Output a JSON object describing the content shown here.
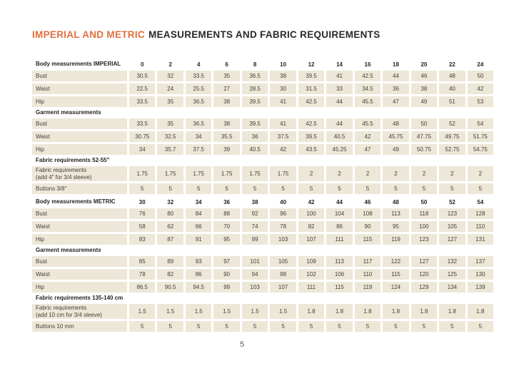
{
  "page": {
    "title_accent": "IMPERIAL AND METRIC",
    "title_rest": "MEASUREMENTS AND FABRIC REQUIREMENTS",
    "page_number": "5",
    "colors": {
      "accent_orange": "#e06e3c",
      "cell_beige": "#ede7d8",
      "heading_text": "#262321",
      "body_text": "#44403a"
    }
  },
  "table": {
    "rows": [
      {
        "type": "size-header",
        "label": "Body measurements IMPERIAL",
        "values": [
          "0",
          "2",
          "4",
          "6",
          "8",
          "10",
          "12",
          "14",
          "16",
          "18",
          "20",
          "22",
          "24"
        ]
      },
      {
        "type": "data",
        "label": "Bust",
        "values": [
          "30.5",
          "32",
          "33.5",
          "35",
          "36.5",
          "38",
          "39.5",
          "41",
          "42.5",
          "44",
          "46",
          "48",
          "50"
        ]
      },
      {
        "type": "data",
        "label": "Waist",
        "values": [
          "22.5",
          "24",
          "25.5",
          "27",
          "28.5",
          "30",
          "31.5",
          "33",
          "34.5",
          "36",
          "38",
          "40",
          "42"
        ]
      },
      {
        "type": "data",
        "label": "Hip",
        "values": [
          "33.5",
          "35",
          "36.5",
          "38",
          "39.5",
          "41",
          "42.5",
          "44",
          "45.5",
          "47",
          "49",
          "51",
          "53"
        ]
      },
      {
        "type": "section",
        "label": "Garment measurements"
      },
      {
        "type": "data",
        "label": "Bust",
        "values": [
          "33.5",
          "35",
          "36.5",
          "38",
          "39.5",
          "41",
          "42.5",
          "44",
          "45.5",
          "48",
          "50",
          "52",
          "54"
        ]
      },
      {
        "type": "data",
        "label": "Waist",
        "values": [
          "30.75",
          "32.5",
          "34",
          "35.5",
          "36",
          "37.5",
          "39.5",
          "40.5",
          "42",
          "45.75",
          "47.75",
          "49.75",
          "51.75"
        ]
      },
      {
        "type": "data",
        "label": "Hip",
        "values": [
          "34",
          "35.7",
          "37.5",
          "39",
          "40.5",
          "42",
          "43.5",
          "45.25",
          "47",
          "49",
          "50.75",
          "52.75",
          "54.75"
        ]
      },
      {
        "type": "section",
        "label": "Fabric requirements 52-55\""
      },
      {
        "type": "data",
        "label": "Fabric requirements",
        "label2": "(add 4\" for 3/4 sleeve)",
        "values": [
          "1.75",
          "1.75",
          "1.75",
          "1.75",
          "1.75",
          "1.75",
          "2",
          "2",
          "2",
          "2",
          "2",
          "2",
          "2"
        ]
      },
      {
        "type": "data",
        "label": "Buttons 3/8\"",
        "values": [
          "5",
          "5",
          "5",
          "5",
          "5",
          "5",
          "5",
          "5",
          "5",
          "5",
          "5",
          "5",
          "5"
        ]
      },
      {
        "type": "size-header",
        "label": "Body measurements METRIC",
        "values": [
          "30",
          "32",
          "34",
          "36",
          "38",
          "40",
          "42",
          "44",
          "46",
          "48",
          "50",
          "52",
          "54"
        ]
      },
      {
        "type": "data",
        "label": "Bust",
        "values": [
          "76",
          "80",
          "84",
          "88",
          "92",
          "96",
          "100",
          "104",
          "108",
          "113",
          "118",
          "123",
          "128"
        ]
      },
      {
        "type": "data",
        "label": "Waist",
        "values": [
          "58",
          "62",
          "66",
          "70",
          "74",
          "78",
          "82",
          "86",
          "90",
          "95",
          "100",
          "105",
          "110"
        ]
      },
      {
        "type": "data",
        "label": "Hip",
        "values": [
          "83",
          "87",
          "91",
          "95",
          "99",
          "103",
          "107",
          "111",
          "115",
          "119",
          "123",
          "127",
          "131"
        ]
      },
      {
        "type": "section",
        "label": "Garment measurements"
      },
      {
        "type": "data",
        "label": "Bust",
        "values": [
          "85",
          "89",
          "93",
          "97",
          "101",
          "105",
          "109",
          "113",
          "117",
          "122",
          "127",
          "132",
          "137"
        ]
      },
      {
        "type": "data",
        "label": "Waist",
        "values": [
          "78",
          "82",
          "86",
          "90",
          "94",
          "98",
          "102",
          "106",
          "110",
          "115",
          "120",
          "125",
          "130"
        ]
      },
      {
        "type": "data",
        "label": "Hip",
        "values": [
          "86.5",
          "90.5",
          "94.5",
          "99",
          "103",
          "107",
          "111",
          "115",
          "119",
          "124",
          "129",
          "134",
          "139"
        ]
      },
      {
        "type": "section",
        "label": "Fabric requirements 135-140 cm"
      },
      {
        "type": "data",
        "label": "Fabric requirements",
        "label2": "(add 10 cm for 3/4 sleeve)",
        "values": [
          "1.5",
          "1.5",
          "1.5",
          "1.5",
          "1.5",
          "1.5",
          "1.8",
          "1.8",
          "1.8",
          "1.8",
          "1.8",
          "1.8",
          "1.8"
        ]
      },
      {
        "type": "data",
        "label": "Buttons 10 mm",
        "values": [
          "5",
          "5",
          "5",
          "5",
          "5",
          "5",
          "5",
          "5",
          "5",
          "5",
          "5",
          "5",
          "5"
        ]
      }
    ]
  }
}
